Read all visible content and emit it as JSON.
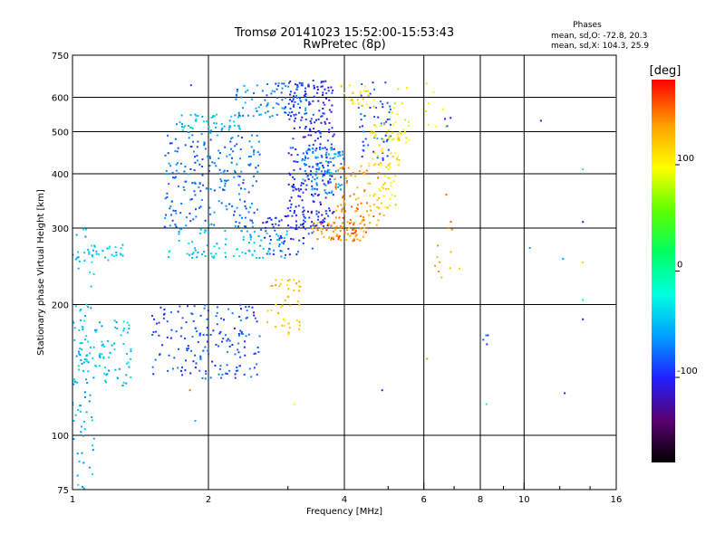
{
  "title_line1": "Tromsø 20141023 15:52:00-15:53:43",
  "title_line2": "RwPretec (8p)",
  "stats": {
    "heading": "Phases",
    "line1": "mean, sd,O: -72.8, 20.3",
    "line2": "mean, sd,X: 104.3, 25.9"
  },
  "chart_data": {
    "type": "scatter",
    "xlabel": "Frequency [MHz]",
    "ylabel": "Stationary phase Virtual Height [km]",
    "xscale": "log",
    "yscale": "log",
    "xlim": [
      1,
      16
    ],
    "ylim": [
      75,
      750
    ],
    "x_ticks": [
      {
        "v": 1,
        "label": "1",
        "major": true
      },
      {
        "v": 2,
        "label": "2",
        "major": true
      },
      {
        "v": 3,
        "label": "",
        "major": false
      },
      {
        "v": 4,
        "label": "4",
        "major": true
      },
      {
        "v": 5,
        "label": "",
        "major": false
      },
      {
        "v": 6,
        "label": "6",
        "major": true
      },
      {
        "v": 7,
        "label": "",
        "major": false
      },
      {
        "v": 8,
        "label": "8",
        "major": true
      },
      {
        "v": 9,
        "label": "",
        "major": false
      },
      {
        "v": 10,
        "label": "10",
        "major": true
      },
      {
        "v": 12,
        "label": "",
        "major": false
      },
      {
        "v": 14,
        "label": "",
        "major": false
      },
      {
        "v": 16,
        "label": "16",
        "major": true
      }
    ],
    "x_gridlines": [
      2,
      4,
      6,
      8,
      10
    ],
    "y_ticks": [
      {
        "v": 75,
        "label": "75"
      },
      {
        "v": 100,
        "label": "100"
      },
      {
        "v": 200,
        "label": "200"
      },
      {
        "v": 300,
        "label": "300"
      },
      {
        "v": 400,
        "label": "400"
      },
      {
        "v": 500,
        "label": "500"
      },
      {
        "v": 600,
        "label": "600"
      },
      {
        "v": 750,
        "label": "750"
      }
    ],
    "y_gridlines": [
      100,
      200,
      300,
      400,
      500,
      600
    ],
    "colorbar": {
      "label": "[deg]",
      "range": [
        -180,
        180
      ],
      "ticks": [
        {
          "v": 100,
          "label": "100"
        },
        {
          "v": 0,
          "label": "0"
        },
        {
          "v": -100,
          "label": "-100"
        }
      ],
      "colors": [
        "#000000",
        "#5a0070",
        "#2020ff",
        "#00a0ff",
        "#00ffe0",
        "#00ff60",
        "#60ff00",
        "#ffff00",
        "#ffa000",
        "#ff0000"
      ]
    },
    "clusters": [
      {
        "f": [
          1.0,
          1.12
        ],
        "h": [
          75,
          300
        ],
        "p": -50,
        "n": 70
      },
      {
        "f": [
          1.0,
          1.35
        ],
        "h": [
          130,
          185
        ],
        "p": -48,
        "n": 90
      },
      {
        "f": [
          1.0,
          1.3
        ],
        "h": [
          250,
          275
        ],
        "p": -42,
        "n": 35
      },
      {
        "f": [
          1.5,
          2.6
        ],
        "h": [
          135,
          200
        ],
        "p": -85,
        "n": 170
      },
      {
        "f": [
          1.6,
          3.0
        ],
        "h": [
          255,
          300
        ],
        "p": -45,
        "n": 90
      },
      {
        "f": [
          1.6,
          2.6
        ],
        "h": [
          300,
          500
        ],
        "p": -75,
        "n": 220
      },
      {
        "f": [
          1.7,
          2.4
        ],
        "h": [
          490,
          550
        ],
        "p": -45,
        "n": 55
      },
      {
        "f": [
          2.3,
          2.8
        ],
        "h": [
          540,
          650
        ],
        "p": -65,
        "n": 40
      },
      {
        "f": [
          2.6,
          3.4
        ],
        "h": [
          260,
          320
        ],
        "p": -95,
        "n": 60
      },
      {
        "f": [
          3.0,
          3.8
        ],
        "h": [
          300,
          660
        ],
        "p": -100,
        "n": 280
      },
      {
        "f": [
          2.8,
          3.3
        ],
        "h": [
          540,
          650
        ],
        "p": -78,
        "n": 50
      },
      {
        "f": [
          3.2,
          4.0
        ],
        "h": [
          360,
          460
        ],
        "p": -60,
        "n": 90
      },
      {
        "f": [
          2.7,
          3.2
        ],
        "h": [
          170,
          230
        ],
        "p": 125,
        "n": 45
      },
      {
        "f": [
          3.4,
          4.5
        ],
        "h": [
          280,
          310
        ],
        "p": 145,
        "n": 70
      },
      {
        "f": [
          3.8,
          4.9
        ],
        "h": [
          300,
          420
        ],
        "p": 140,
        "n": 80
      },
      {
        "f": [
          4.3,
          5.1
        ],
        "h": [
          430,
          650
        ],
        "p": -85,
        "n": 55
      },
      {
        "f": [
          4.5,
          5.3
        ],
        "h": [
          330,
          520
        ],
        "p": 110,
        "n": 75
      },
      {
        "f": [
          5.0,
          5.6
        ],
        "h": [
          470,
          640
        ],
        "p": 95,
        "n": 25
      },
      {
        "f": [
          3.9,
          4.7
        ],
        "h": [
          560,
          650
        ],
        "p": 120,
        "n": 25
      },
      {
        "f": [
          6.0,
          6.8
        ],
        "h": [
          500,
          650
        ],
        "p": 100,
        "n": 8
      },
      {
        "f": [
          6.3,
          7.2
        ],
        "h": [
          230,
          380
        ],
        "p": 140,
        "n": 12
      },
      {
        "f": [
          6.6,
          7.0
        ],
        "h": [
          515,
          540
        ],
        "p": -95,
        "n": 3
      },
      {
        "f": [
          8.0,
          8.4
        ],
        "h": [
          160,
          170
        ],
        "p": -80,
        "n": 4
      }
    ],
    "isolated_points": [
      {
        "f": 1.05,
        "h": 91,
        "p": -60
      },
      {
        "f": 1.87,
        "h": 108,
        "p": -50
      },
      {
        "f": 1.82,
        "h": 127,
        "p": 150
      },
      {
        "f": 3.1,
        "h": 118,
        "p": 100
      },
      {
        "f": 4.85,
        "h": 127,
        "p": -100
      },
      {
        "f": 6.1,
        "h": 150,
        "p": 140
      },
      {
        "f": 8.25,
        "h": 118,
        "p": 30
      },
      {
        "f": 10.9,
        "h": 530,
        "p": -110
      },
      {
        "f": 10.3,
        "h": 270,
        "p": -60
      },
      {
        "f": 12.3,
        "h": 125,
        "p": -100
      },
      {
        "f": 12.2,
        "h": 255,
        "p": -60
      },
      {
        "f": 13.5,
        "h": 410,
        "p": 30
      },
      {
        "f": 13.5,
        "h": 310,
        "p": -100
      },
      {
        "f": 13.5,
        "h": 185,
        "p": -120
      },
      {
        "f": 13.5,
        "h": 205,
        "p": 0
      },
      {
        "f": 13.5,
        "h": 250,
        "p": 120
      },
      {
        "f": 1.83,
        "h": 640,
        "p": -90
      },
      {
        "f": 6.8,
        "h": 300,
        "p": 150
      }
    ]
  }
}
